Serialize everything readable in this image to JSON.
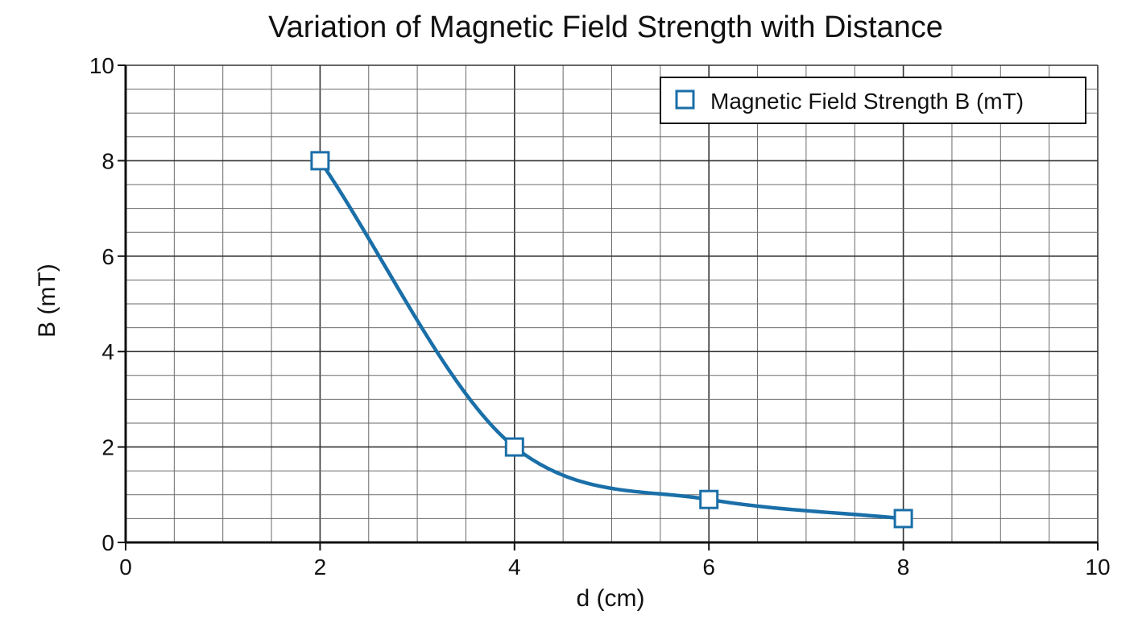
{
  "chart_data": {
    "type": "line",
    "title": "Variation of Magnetic Field Strength with Distance",
    "xlabel": "d (cm)",
    "ylabel": "B (mT)",
    "xlim": [
      0,
      10
    ],
    "ylim": [
      0,
      10
    ],
    "x_ticks": [
      "0",
      "2",
      "4",
      "6",
      "8",
      "10"
    ],
    "y_ticks": [
      "0",
      "2",
      "4",
      "6",
      "8",
      "10"
    ],
    "grid": true,
    "legend_position": "top-right",
    "series": [
      {
        "name": "Magnetic Field Strength B (mT)",
        "x": [
          2,
          4,
          6,
          8
        ],
        "y": [
          8,
          2,
          0.9,
          0.5
        ],
        "color": "#1a6fa8",
        "marker": "square",
        "curve": "smooth"
      }
    ]
  }
}
